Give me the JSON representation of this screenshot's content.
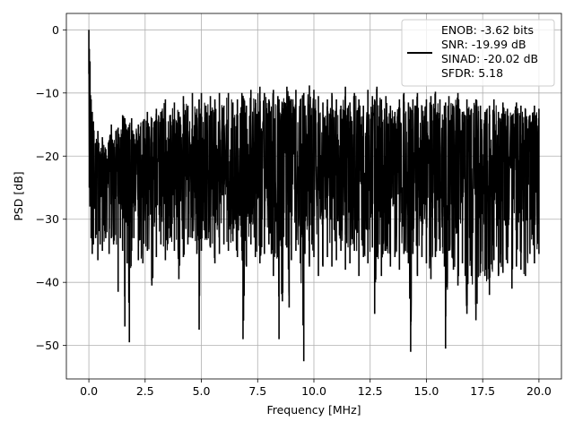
{
  "chart_data": {
    "type": "line",
    "title": "",
    "xlabel": "Frequency [MHz]",
    "ylabel": "PSD [dB]",
    "xlim": [
      -1.0,
      21.0
    ],
    "ylim": [
      -55.3,
      2.6
    ],
    "xticks": [
      0.0,
      2.5,
      5.0,
      7.5,
      10.0,
      12.5,
      15.0,
      17.5,
      20.0
    ],
    "xtick_labels": [
      "0.0",
      "2.5",
      "5.0",
      "7.5",
      "10.0",
      "12.5",
      "15.0",
      "17.5",
      "20.0"
    ],
    "yticks": [
      0,
      -10,
      -20,
      -30,
      -40,
      -50
    ],
    "ytick_labels": [
      "0",
      "−10",
      "−20",
      "−30",
      "−40",
      "−50"
    ],
    "grid": true,
    "legend_position": "top-right",
    "line_color": "#000000",
    "series": [
      {
        "legend_lines": [
          "ENOB: -3.62 bits",
          "SNR: -19.99 dB",
          "SINAD: -20.02 dB",
          "SFDR: 5.18"
        ],
        "x": [
          0.0,
          0.02,
          0.05,
          0.1,
          0.15,
          0.2,
          0.3,
          0.4,
          0.5,
          0.6,
          0.75,
          0.9,
          1.0,
          1.1,
          1.2,
          1.3,
          1.4,
          1.5,
          1.6,
          1.7,
          1.8,
          1.9,
          2.0,
          2.2,
          2.4,
          2.6,
          2.8,
          3.0,
          3.2,
          3.4,
          3.6,
          3.8,
          4.0,
          4.2,
          4.4,
          4.6,
          4.8,
          4.9,
          5.0,
          5.2,
          5.4,
          5.6,
          5.8,
          6.0,
          6.2,
          6.4,
          6.6,
          6.8,
          6.85,
          7.0,
          7.2,
          7.4,
          7.6,
          7.8,
          8.0,
          8.2,
          8.4,
          8.45,
          8.6,
          8.8,
          8.9,
          9.0,
          9.2,
          9.4,
          9.55,
          9.6,
          9.8,
          10.0,
          10.2,
          10.4,
          10.6,
          10.8,
          11.0,
          11.2,
          11.4,
          11.6,
          11.8,
          12.0,
          12.2,
          12.4,
          12.6,
          12.7,
          12.8,
          13.0,
          13.2,
          13.4,
          13.6,
          13.8,
          14.0,
          14.2,
          14.3,
          14.4,
          14.6,
          14.8,
          15.0,
          15.2,
          15.4,
          15.6,
          15.8,
          15.85,
          16.0,
          16.2,
          16.4,
          16.6,
          16.8,
          17.0,
          17.2,
          17.4,
          17.6,
          17.8,
          18.0,
          18.2,
          18.4,
          18.6,
          18.8,
          19.0,
          19.2,
          19.4,
          19.6,
          19.8,
          20.0
        ],
        "upper": [
          0.0,
          -3.0,
          -5.0,
          -11.0,
          -13.0,
          -14.5,
          -18.0,
          -16.0,
          -20.0,
          -17.0,
          -19.0,
          -17.5,
          -15.0,
          -18.0,
          -16.0,
          -15.5,
          -17.0,
          -13.5,
          -14.0,
          -16.0,
          -15.0,
          -14.0,
          -16.5,
          -15.0,
          -14.5,
          -13.0,
          -14.0,
          -12.5,
          -13.0,
          -11.0,
          -13.5,
          -11.5,
          -13.0,
          -10.5,
          -12.0,
          -10.0,
          -12.5,
          -11.0,
          -10.0,
          -12.0,
          -10.5,
          -11.0,
          -10.0,
          -12.0,
          -10.0,
          -11.5,
          -11.0,
          -10.0,
          -10.5,
          -12.0,
          -9.5,
          -11.0,
          -9.0,
          -10.0,
          -11.0,
          -9.5,
          -10.5,
          -11.0,
          -11.5,
          -9.0,
          -10.5,
          -11.0,
          -9.5,
          -11.0,
          -10.0,
          -12.0,
          -8.8,
          -9.5,
          -10.5,
          -11.5,
          -11.0,
          -10.0,
          -11.0,
          -12.0,
          -9.0,
          -11.5,
          -10.0,
          -11.0,
          -12.0,
          -9.5,
          -10.5,
          -11.0,
          -9.0,
          -11.0,
          -10.5,
          -12.0,
          -13.0,
          -11.0,
          -10.0,
          -11.5,
          -12.5,
          -11.0,
          -10.0,
          -12.0,
          -11.0,
          -10.5,
          -9.8,
          -11.0,
          -12.0,
          -11.5,
          -10.5,
          -12.0,
          -10.0,
          -13.0,
          -11.0,
          -12.5,
          -11.0,
          -12.0,
          -13.0,
          -12.0,
          -11.0,
          -13.0,
          -11.5,
          -12.5,
          -13.5,
          -11.5,
          -12.0,
          -12.5,
          -13.5,
          -12.0,
          -12.5
        ],
        "lower": [
          -7.0,
          -25.0,
          -28.0,
          -33.0,
          -35.5,
          -34.0,
          -33.0,
          -36.5,
          -34.0,
          -35.0,
          -33.0,
          -35.5,
          -33.0,
          -34.0,
          -32.5,
          -41.5,
          -33.0,
          -35.0,
          -47.0,
          -37.0,
          -49.5,
          -35.0,
          -33.0,
          -36.5,
          -37.0,
          -35.0,
          -40.5,
          -36.0,
          -34.0,
          -36.5,
          -33.0,
          -35.0,
          -39.5,
          -36.0,
          -34.0,
          -33.0,
          -35.5,
          -47.5,
          -35.0,
          -33.0,
          -34.5,
          -37.0,
          -35.5,
          -34.0,
          -35.0,
          -33.5,
          -36.0,
          -35.0,
          -49.0,
          -37.5,
          -34.0,
          -36.0,
          -37.0,
          -35.5,
          -34.0,
          -39.0,
          -36.0,
          -49.0,
          -43.0,
          -34.5,
          -44.0,
          -36.5,
          -35.0,
          -37.0,
          -52.5,
          -35.5,
          -37.5,
          -36.0,
          -39.0,
          -37.5,
          -36.0,
          -37.5,
          -36.5,
          -35.0,
          -38.0,
          -37.0,
          -35.0,
          -39.0,
          -36.0,
          -37.0,
          -34.5,
          -45.0,
          -36.0,
          -39.0,
          -35.0,
          -37.5,
          -36.0,
          -38.0,
          -35.5,
          -37.0,
          -51.0,
          -35.5,
          -39.0,
          -36.0,
          -37.0,
          -39.5,
          -36.0,
          -35.0,
          -37.5,
          -50.5,
          -35.0,
          -38.0,
          -40.5,
          -37.0,
          -45.0,
          -39.0,
          -46.0,
          -38.5,
          -39.0,
          -42.0,
          -36.5,
          -39.0,
          -38.5,
          -37.0,
          -41.0,
          -37.5,
          -38.0,
          -39.0,
          -35.5,
          -37.0,
          -35.5
        ],
        "center": -22.0
      }
    ]
  }
}
